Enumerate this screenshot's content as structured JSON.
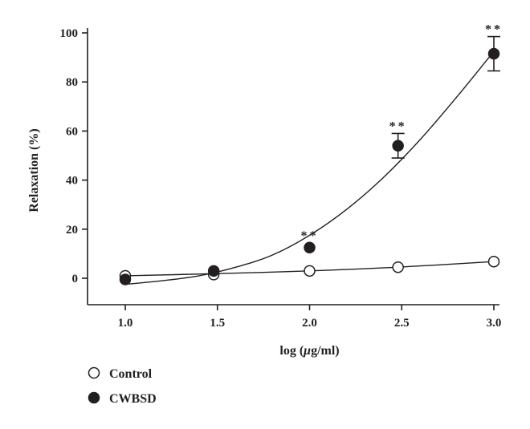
{
  "chart_data": {
    "type": "scatter",
    "xlabel_prefix": "log (",
    "xlabel_mu": "μ",
    "xlabel_suffix": "g/ml)",
    "ylabel": "Relaxation (%)",
    "xlim": [
      0.8,
      3.0
    ],
    "ylim": [
      -10,
      100
    ],
    "x_ticks": [
      1.0,
      1.5,
      2.0,
      2.5,
      3.0
    ],
    "x_tick_labels": [
      "1.0",
      "1.5",
      "2.0",
      "2.5",
      "3.0"
    ],
    "y_ticks": [
      0,
      20,
      40,
      60,
      80,
      100
    ],
    "y_tick_labels": [
      "0",
      "20",
      "40",
      "60",
      "80",
      "100"
    ],
    "grid": false,
    "legend_position": "bottom-left",
    "series": [
      {
        "name": "Control",
        "marker": "open-circle",
        "points": [
          {
            "x": 1.0,
            "y": 1.0
          },
          {
            "x": 1.48,
            "y": 1.5
          },
          {
            "x": 2.0,
            "y": 3.0
          },
          {
            "x": 2.48,
            "y": 4.5
          },
          {
            "x": 3.0,
            "y": 6.8
          }
        ],
        "fit": [
          [
            1.0,
            1.0
          ],
          [
            1.5,
            1.9
          ],
          [
            2.0,
            3.0
          ],
          [
            2.5,
            4.6
          ],
          [
            3.0,
            6.8
          ]
        ]
      },
      {
        "name": "CWBSD",
        "marker": "filled-circle",
        "points": [
          {
            "x": 1.0,
            "y": -0.5
          },
          {
            "x": 1.48,
            "y": 3.0,
            "annotation": ""
          },
          {
            "x": 2.0,
            "y": 12.5,
            "annotation": "**"
          },
          {
            "x": 2.48,
            "y": 54.0,
            "err": 5.0,
            "annotation": "**"
          },
          {
            "x": 3.0,
            "y": 91.5,
            "err": 7.0,
            "annotation": "**"
          }
        ],
        "fit": [
          [
            1.0,
            -2.5
          ],
          [
            1.2,
            -1.0
          ],
          [
            1.4,
            1.0
          ],
          [
            1.6,
            4.5
          ],
          [
            1.8,
            9.5
          ],
          [
            2.0,
            17.5
          ],
          [
            2.2,
            28.0
          ],
          [
            2.4,
            41.0
          ],
          [
            2.6,
            56.5
          ],
          [
            2.8,
            74.0
          ],
          [
            3.0,
            92.5
          ]
        ]
      }
    ]
  }
}
